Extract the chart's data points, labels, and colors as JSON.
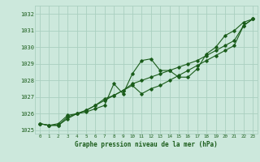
{
  "xlabel": "Graphe pression niveau de la mer (hPa)",
  "bg_color": "#cce8dc",
  "grid_color": "#aad0c0",
  "line_color": "#1a5c1a",
  "text_color": "#1a5c1a",
  "ylim": [
    1024.8,
    1032.5
  ],
  "yticks": [
    1025,
    1026,
    1027,
    1028,
    1029,
    1030,
    1031,
    1032
  ],
  "xlim": [
    -0.5,
    23.5
  ],
  "xticks": [
    0,
    1,
    2,
    3,
    4,
    5,
    6,
    7,
    8,
    9,
    10,
    11,
    12,
    13,
    14,
    15,
    16,
    17,
    18,
    19,
    20,
    21,
    22,
    23
  ],
  "hours": [
    0,
    1,
    2,
    3,
    4,
    5,
    6,
    7,
    8,
    9,
    10,
    11,
    12,
    13,
    14,
    15,
    16,
    17,
    18,
    19,
    20,
    21,
    22,
    23
  ],
  "line1": [
    1025.4,
    1025.3,
    1025.3,
    1025.7,
    1026.0,
    1026.1,
    1026.3,
    1026.5,
    1027.8,
    1027.2,
    1028.4,
    1029.2,
    1029.3,
    1028.6,
    1028.6,
    1028.2,
    1028.2,
    1028.7,
    1029.6,
    1030.0,
    1030.7,
    1031.0,
    1031.5,
    1031.7
  ],
  "line2": [
    1025.4,
    1025.3,
    1025.3,
    1025.8,
    1026.0,
    1026.2,
    1026.5,
    1026.8,
    1027.1,
    1027.4,
    1027.7,
    1027.2,
    1027.5,
    1027.7,
    1028.0,
    1028.3,
    1028.6,
    1028.9,
    1029.2,
    1029.5,
    1029.8,
    1030.1,
    1031.3,
    1031.7
  ],
  "line3": [
    1025.4,
    1025.3,
    1025.4,
    1025.9,
    1026.0,
    1026.2,
    1026.5,
    1026.9,
    1027.1,
    1027.4,
    1027.8,
    1028.0,
    1028.2,
    1028.4,
    1028.6,
    1028.8,
    1029.0,
    1029.2,
    1029.5,
    1029.8,
    1030.1,
    1030.4,
    1031.3,
    1031.7
  ]
}
